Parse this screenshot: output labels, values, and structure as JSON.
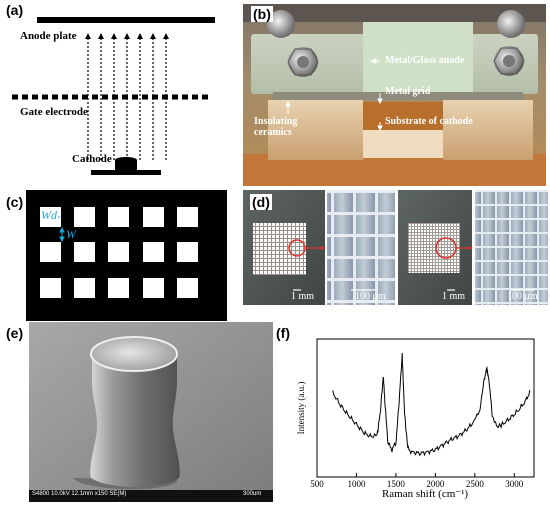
{
  "panels": {
    "a": {
      "label": "(a)",
      "anode_label": "Anode plate",
      "gate_label": "Gate electrode",
      "cathode_label": "Cathode"
    },
    "b": {
      "label": "(b)",
      "metal_glass_anode": "Metal/Glass anode",
      "metal_grid": "Metal grid",
      "insulating_ceramics_line1": "Insulating",
      "insulating_ceramics_line2": "ceramics",
      "substrate_of_cathode": "Substrate of cathode"
    },
    "c": {
      "label": "(c)",
      "wd_label": "Wd",
      "w_label": "W",
      "accent_color": "#19a7e0"
    },
    "d": {
      "label": "(d)",
      "scale_1mm_left": "1 mm",
      "scale_100um_left": "100 μm",
      "scale_1mm_right": "1 mm",
      "scale_100um_right": "100 μm"
    },
    "e": {
      "label": "(e)",
      "sem_info": "S4800 10.0kV 12.1mm x150 SE(M)",
      "sem_scale": "300um"
    },
    "f": {
      "label": "(f)"
    }
  },
  "chart_data": {
    "type": "line",
    "title": "",
    "xlabel": "Raman shift (cm⁻¹)",
    "ylabel": "Intensity (a.u.)",
    "xlim": [
      500,
      3250
    ],
    "x_ticks": [
      "500",
      "1000",
      "1500",
      "2000",
      "2500",
      "3000"
    ],
    "grid": false,
    "series": [
      {
        "x": [
          700,
          800,
          900,
          1000,
          1100,
          1200,
          1260,
          1300,
          1340,
          1360,
          1400,
          1450,
          1500,
          1540,
          1580,
          1610,
          1650,
          1700,
          1800,
          1900,
          2000,
          2100,
          2200,
          2300,
          2400,
          2500,
          2560,
          2620,
          2650,
          2680,
          2720,
          2780,
          2850,
          2950,
          3050,
          3150,
          3200
        ],
        "y": [
          0.62,
          0.52,
          0.44,
          0.37,
          0.3,
          0.27,
          0.28,
          0.45,
          0.75,
          0.55,
          0.22,
          0.17,
          0.22,
          0.55,
          0.92,
          0.45,
          0.18,
          0.15,
          0.14,
          0.15,
          0.17,
          0.21,
          0.25,
          0.28,
          0.33,
          0.4,
          0.48,
          0.72,
          0.82,
          0.72,
          0.45,
          0.35,
          0.37,
          0.42,
          0.48,
          0.56,
          0.64
        ]
      }
    ]
  }
}
